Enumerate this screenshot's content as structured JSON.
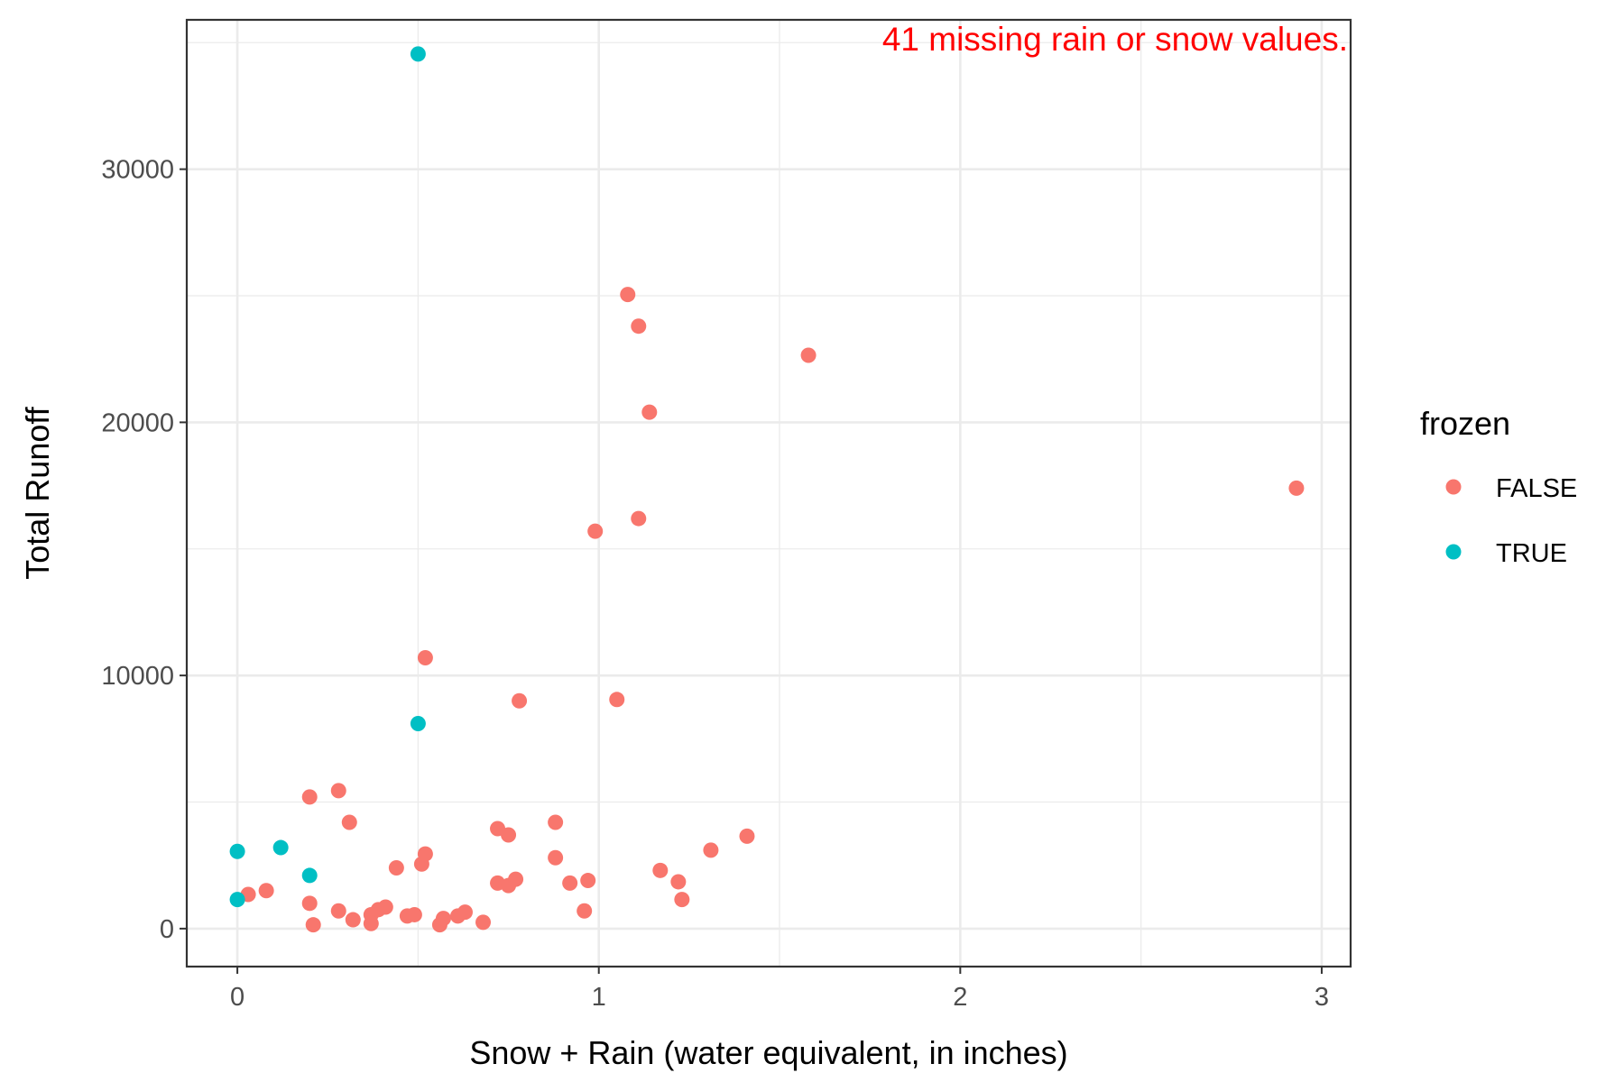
{
  "chart_data": {
    "type": "scatter",
    "xlabel": "Snow + Rain (water equivalent, in inches)",
    "ylabel": "Total Runoff",
    "xlim": [
      -0.14,
      3.08
    ],
    "ylim": [
      -1500,
      35900
    ],
    "x_ticks": [
      0,
      1,
      2,
      3
    ],
    "y_ticks": [
      0,
      10000,
      20000,
      30000
    ],
    "x_tick_labels": [
      "0",
      "1",
      "2",
      "3"
    ],
    "y_tick_labels": [
      "0",
      "10000",
      "20000",
      "30000"
    ],
    "grid": true,
    "annotation": "41 missing rain or snow values.",
    "annotation_color": "#ff0000",
    "legend": {
      "title": "frozen",
      "position": "right",
      "entries": [
        {
          "label": "FALSE",
          "color": "#f8766d"
        },
        {
          "label": "TRUE",
          "color": "#00bfc4"
        }
      ]
    },
    "series": [
      {
        "name": "FALSE",
        "color": "#f8766d",
        "points": [
          [
            0.03,
            1350
          ],
          [
            0.08,
            1500
          ],
          [
            0.2,
            5200
          ],
          [
            0.2,
            1000
          ],
          [
            0.21,
            150
          ],
          [
            0.28,
            5450
          ],
          [
            0.28,
            700
          ],
          [
            0.31,
            4200
          ],
          [
            0.32,
            350
          ],
          [
            0.37,
            550
          ],
          [
            0.37,
            200
          ],
          [
            0.39,
            750
          ],
          [
            0.41,
            850
          ],
          [
            0.44,
            2400
          ],
          [
            0.47,
            500
          ],
          [
            0.49,
            550
          ],
          [
            0.51,
            2550
          ],
          [
            0.52,
            2950
          ],
          [
            0.52,
            10700
          ],
          [
            0.56,
            150
          ],
          [
            0.57,
            400
          ],
          [
            0.61,
            500
          ],
          [
            0.63,
            650
          ],
          [
            0.68,
            250
          ],
          [
            0.72,
            1800
          ],
          [
            0.72,
            3950
          ],
          [
            0.75,
            3700
          ],
          [
            0.75,
            1700
          ],
          [
            0.77,
            1950
          ],
          [
            0.78,
            9000
          ],
          [
            0.88,
            2800
          ],
          [
            0.88,
            4200
          ],
          [
            0.92,
            1800
          ],
          [
            0.96,
            700
          ],
          [
            0.97,
            1900
          ],
          [
            0.99,
            15700
          ],
          [
            1.05,
            9050
          ],
          [
            1.08,
            25050
          ],
          [
            1.11,
            23800
          ],
          [
            1.11,
            16200
          ],
          [
            1.14,
            20400
          ],
          [
            1.17,
            2300
          ],
          [
            1.22,
            1850
          ],
          [
            1.23,
            1150
          ],
          [
            1.31,
            3100
          ],
          [
            1.41,
            3650
          ],
          [
            1.58,
            22650
          ],
          [
            2.93,
            17400
          ]
        ]
      },
      {
        "name": "TRUE",
        "color": "#00bfc4",
        "points": [
          [
            0.0,
            1150
          ],
          [
            0.0,
            3050
          ],
          [
            0.12,
            3200
          ],
          [
            0.2,
            2100
          ],
          [
            0.5,
            8100
          ],
          [
            0.5,
            34550
          ]
        ]
      }
    ]
  }
}
